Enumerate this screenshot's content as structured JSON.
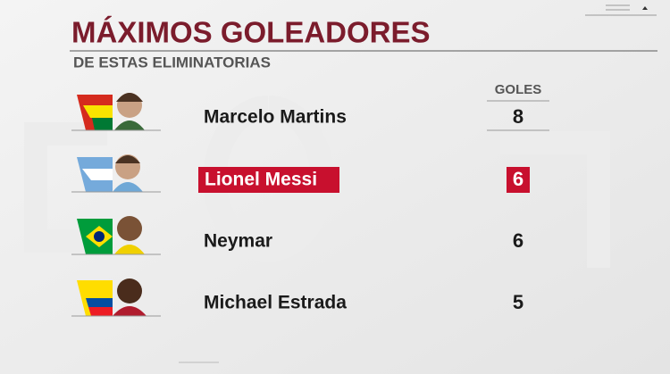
{
  "header": {
    "title": "MÁXIMOS GOLEADORES",
    "subtitle": "DE ESTAS ELIMINATORIAS"
  },
  "table": {
    "column_header": "GOLES",
    "rows": [
      {
        "name": "Marcelo Martins",
        "goals": 8
      },
      {
        "name": "Lionel Messi",
        "goals": 6
      },
      {
        "name": "Neymar",
        "goals": 6
      },
      {
        "name": "Michael Estrada",
        "goals": 5
      }
    ]
  }
}
